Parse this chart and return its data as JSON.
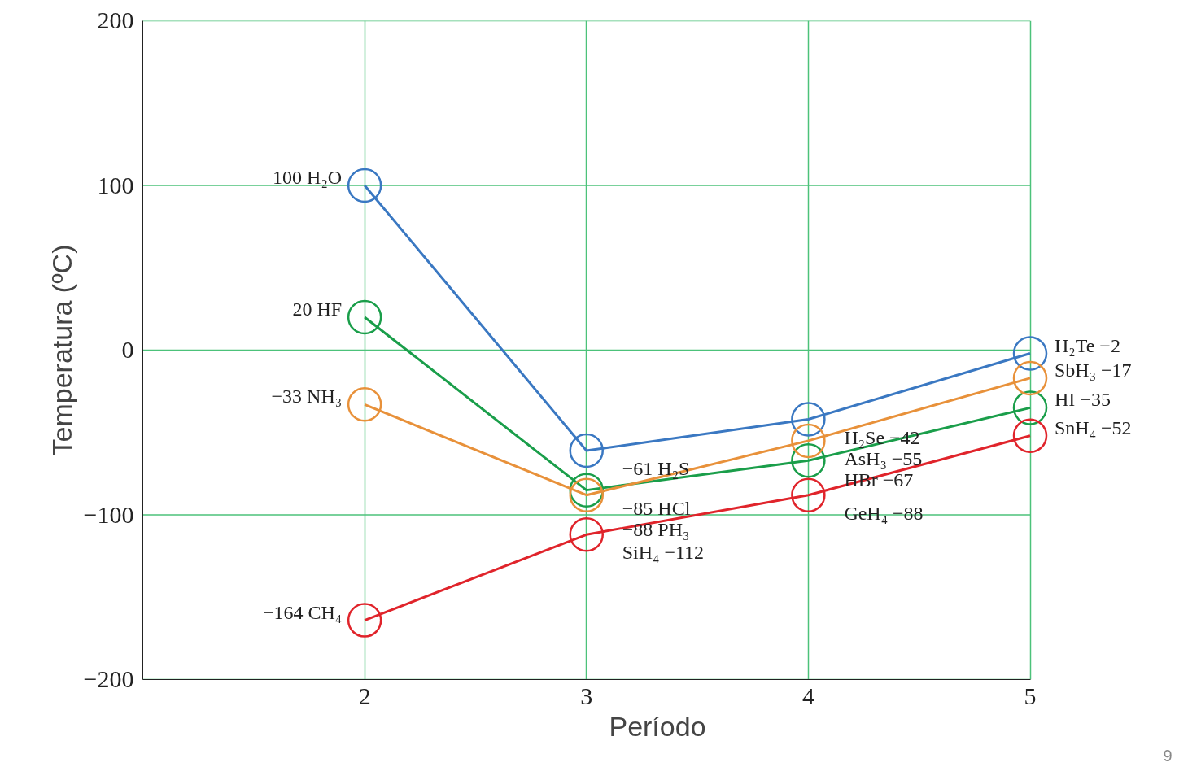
{
  "chart_data": {
    "type": "line",
    "xlabel": "Período",
    "ylabel": "Temperatura (ºC)",
    "x": [
      2,
      3,
      4,
      5
    ],
    "xlim": [
      1,
      5
    ],
    "xticks": [
      2,
      3,
      4,
      5
    ],
    "ylim": [
      -200,
      200
    ],
    "yticks": [
      {
        "value": -200,
        "label": "−200"
      },
      {
        "value": -100,
        "label": "−100"
      },
      0,
      100,
      200
    ],
    "grid": true,
    "marker": "circle",
    "line_style": "solid",
    "series": [
      {
        "color": "#3a78c2",
        "values": [
          100,
          -61,
          -42,
          -2
        ]
      },
      {
        "color": "#1a9e4a",
        "values": [
          20,
          -85,
          -67,
          -35
        ]
      },
      {
        "color": "#e8913a",
        "values": [
          -33,
          -88,
          -55,
          -17
        ]
      },
      {
        "color": "#e0242b",
        "values": [
          -164,
          -112,
          -88,
          -52
        ]
      }
    ],
    "annotations": [
      {
        "text": "100 H₂O",
        "x": 2,
        "y": 100
      },
      {
        "text": "20 HF",
        "x": 2,
        "y": 20
      },
      {
        "text": "−33 NH₃",
        "x": 2,
        "y": -33
      },
      {
        "text": "−164 CH₄",
        "x": 2,
        "y": -164
      },
      {
        "text": "−61 H₂S",
        "x": 3,
        "y": -61
      },
      {
        "text": "−85 HCl",
        "x": 3,
        "y": -85
      },
      {
        "text": "−88 PH₃",
        "x": 3,
        "y": -88
      },
      {
        "text": "SiH₄ −112",
        "x": 3,
        "y": -112
      },
      {
        "text": "H₂Se −42",
        "x": 4,
        "y": -42
      },
      {
        "text": "AsH₃ −55",
        "x": 4,
        "y": -55
      },
      {
        "text": "HBr −67",
        "x": 4,
        "y": -67
      },
      {
        "text": "GeH₄ −88",
        "x": 4,
        "y": -88
      },
      {
        "text": "H₂Te −2",
        "x": 5,
        "y": -2
      },
      {
        "text": "SbH₃ −17",
        "x": 5,
        "y": -17
      },
      {
        "text": "HI −35",
        "x": 5,
        "y": -35
      },
      {
        "text": "SnH₄ −52",
        "x": 5,
        "y": -52
      },
      "9"
    ]
  }
}
